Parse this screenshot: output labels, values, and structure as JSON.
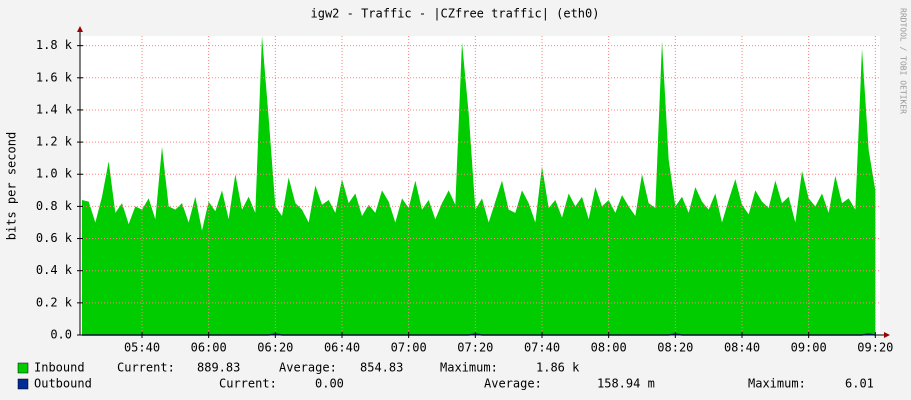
{
  "chart_data": {
    "type": "area",
    "title": "igw2 - Traffic - |CZfree traffic| (eth0)",
    "watermark": "RRDTOOL / TOBI OETIKER",
    "y_label": "bits per second",
    "x": [
      322,
      324,
      326,
      328,
      330,
      332,
      334,
      336,
      338,
      340,
      342,
      344,
      346,
      348,
      350,
      352,
      354,
      356,
      358,
      360,
      362,
      364,
      366,
      368,
      370,
      372,
      374,
      376,
      378,
      380,
      382,
      384,
      386,
      388,
      390,
      392,
      394,
      396,
      398,
      400,
      402,
      404,
      406,
      408,
      410,
      412,
      414,
      416,
      418,
      420,
      422,
      424,
      426,
      428,
      430,
      432,
      434,
      436,
      438,
      440,
      442,
      444,
      446,
      448,
      450,
      452,
      454,
      456,
      458,
      460,
      462,
      464,
      466,
      468,
      470,
      472,
      474,
      476,
      478,
      480,
      482,
      484,
      486,
      488,
      490,
      492,
      494,
      496,
      498,
      500,
      502,
      504,
      506,
      508,
      510,
      512,
      514,
      516,
      518,
      520,
      522,
      524,
      526,
      528,
      530,
      532,
      534,
      536,
      538,
      540,
      542,
      544,
      546,
      548,
      550,
      552,
      554,
      556,
      558,
      560
    ],
    "series": [
      {
        "name": "Inbound",
        "color": "#00cc00",
        "values": [
          840,
          830,
          700,
          860,
          1080,
          760,
          820,
          690,
          800,
          780,
          850,
          720,
          1170,
          800,
          780,
          820,
          700,
          860,
          650,
          830,
          770,
          900,
          720,
          1000,
          780,
          860,
          760,
          1860,
          1350,
          800,
          740,
          980,
          820,
          780,
          700,
          930,
          810,
          840,
          760,
          970,
          820,
          880,
          740,
          810,
          760,
          900,
          830,
          700,
          850,
          790,
          960,
          780,
          840,
          720,
          820,
          900,
          810,
          1820,
          1380,
          780,
          850,
          700,
          830,
          960,
          780,
          760,
          900,
          820,
          700,
          1050,
          790,
          840,
          730,
          880,
          800,
          860,
          720,
          920,
          800,
          840,
          760,
          870,
          800,
          740,
          1000,
          820,
          790,
          1830,
          1090,
          800,
          860,
          760,
          920,
          830,
          780,
          880,
          700,
          840,
          970,
          810,
          750,
          900,
          830,
          790,
          960,
          820,
          860,
          700,
          1020,
          850,
          800,
          880,
          760,
          990,
          820,
          850,
          780,
          1780,
          1150,
          900
        ],
        "stats": [
          [
            "Current:",
            "889.83"
          ],
          [
            "Average:",
            "854.83"
          ],
          [
            "Maximum:",
            "1.86 k"
          ]
        ]
      },
      {
        "name": "Outbound",
        "color": "#002a97",
        "values": [
          0,
          0,
          0,
          0,
          0,
          0,
          0,
          0,
          0,
          0,
          0,
          0,
          0,
          0,
          0,
          0,
          0,
          0,
          0,
          0,
          0,
          0,
          0,
          0,
          0,
          0,
          0,
          0,
          0,
          6.01,
          0,
          0,
          0,
          0,
          0,
          0,
          0,
          0,
          0,
          0,
          0,
          0,
          0,
          0,
          0,
          0,
          0,
          0,
          0,
          0,
          0,
          0,
          0,
          0,
          0,
          0,
          0,
          0,
          0,
          6.01,
          0,
          0,
          0,
          0,
          0,
          0,
          0,
          0,
          0,
          0,
          0,
          0,
          0,
          0,
          0,
          0,
          0,
          0,
          0,
          0,
          0,
          0,
          0,
          0,
          0,
          0,
          0,
          0,
          0,
          6.01,
          0,
          0,
          0,
          0,
          0,
          0,
          0,
          0,
          0,
          0,
          0,
          0,
          0,
          0,
          0,
          0,
          0,
          0,
          0,
          0,
          0,
          0,
          0,
          0,
          0,
          0,
          0,
          0,
          6.01,
          0
        ],
        "stats": [
          [
            "Current:",
            "0.00"
          ],
          [
            "Average:",
            "158.94 m"
          ],
          [
            "Maximum:",
            "6.01"
          ]
        ]
      }
    ],
    "xlim": [
      321.4,
      561.4
    ],
    "xticks": [
      {
        "value": 340,
        "label": "05:40"
      },
      {
        "value": 360,
        "label": "06:00"
      },
      {
        "value": 380,
        "label": "06:20"
      },
      {
        "value": 400,
        "label": "06:40"
      },
      {
        "value": 420,
        "label": "07:00"
      },
      {
        "value": 440,
        "label": "07:20"
      },
      {
        "value": 460,
        "label": "07:40"
      },
      {
        "value": 480,
        "label": "08:00"
      },
      {
        "value": 500,
        "label": "08:20"
      },
      {
        "value": 520,
        "label": "08:40"
      },
      {
        "value": 540,
        "label": "09:00"
      },
      {
        "value": 560,
        "label": "09:20"
      }
    ],
    "ylim": [
      0,
      1860
    ],
    "yticks": [
      {
        "value": 0,
        "label": "0.0"
      },
      {
        "value": 200,
        "label": "0.2 k"
      },
      {
        "value": 400,
        "label": "0.4 k"
      },
      {
        "value": 600,
        "label": "0.6 k"
      },
      {
        "value": 800,
        "label": "0.8 k"
      },
      {
        "value": 1000,
        "label": "1.0 k"
      },
      {
        "value": 1200,
        "label": "1.2 k"
      },
      {
        "value": 1400,
        "label": "1.4 k"
      },
      {
        "value": 1600,
        "label": "1.6 k"
      },
      {
        "value": 1800,
        "label": "1.8 k"
      }
    ],
    "grid": true
  }
}
